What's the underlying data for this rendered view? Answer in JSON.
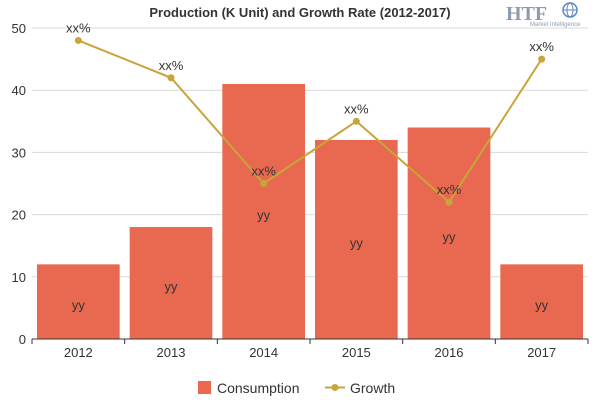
{
  "chart_data": {
    "type": "bar",
    "title": "Production (K Unit) and Growth Rate (2012-2017)",
    "categories": [
      "2012",
      "2013",
      "2014",
      "2015",
      "2016",
      "2017"
    ],
    "ylim": [
      0,
      50
    ],
    "yticks": [
      0,
      10,
      20,
      30,
      40,
      50
    ],
    "grid": true,
    "legend_position": "bottom",
    "series": [
      {
        "name": "Consumption",
        "type": "bar",
        "color": "#e8694f",
        "values": [
          12,
          18,
          41,
          32,
          34,
          12
        ],
        "labels": [
          "yy",
          "yy",
          "yy",
          "yy",
          "yy",
          "yy"
        ]
      },
      {
        "name": "Growth",
        "type": "line",
        "color": "#c9a43a",
        "values": [
          48,
          42,
          25,
          35,
          22,
          45
        ],
        "labels": [
          "xx%",
          "xx%",
          "xx%",
          "xx%",
          "xx%",
          "xx%"
        ]
      }
    ]
  },
  "logo": {
    "text": "HTF",
    "subtext": "Market Intelligence",
    "icon": "globe-icon"
  }
}
